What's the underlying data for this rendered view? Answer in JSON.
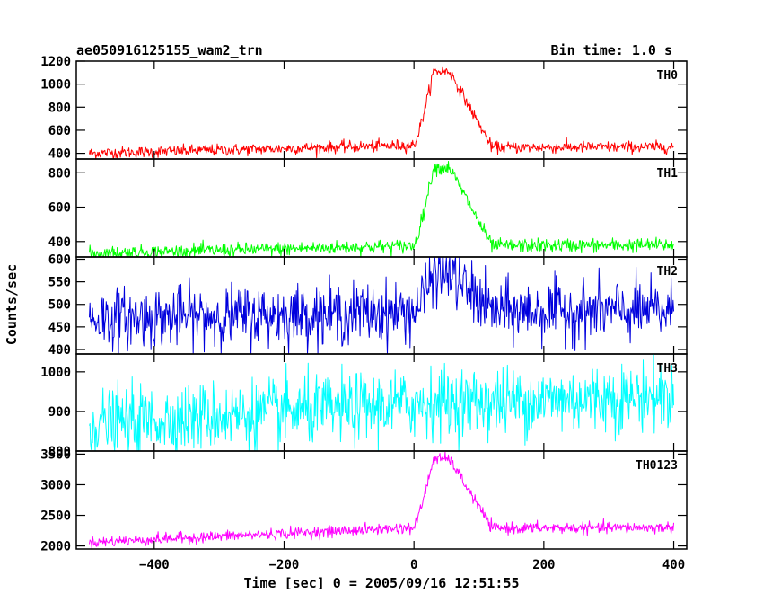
{
  "header": {
    "title": "ae050916125155_wam2_trn",
    "bin_time": "Bin time: 1.0 s"
  },
  "chart_data": {
    "type": "line",
    "title": "ae050916125155_wam2_trn",
    "subtitle": "Bin time: 1.0 s",
    "xlabel": "Time [sec] 0 = 2005/09/16 12:51:55",
    "ylabel": "Counts/sec",
    "xlim": [
      -520,
      420
    ],
    "x_ticks": [
      -400,
      -200,
      0,
      200,
      400
    ],
    "x_tick_labels": [
      "−400",
      "−200",
      "0",
      "200",
      "400"
    ],
    "x_range": [
      -500,
      400
    ],
    "bin_time": 1.0,
    "grid": false,
    "panels": [
      {
        "name": "TH0",
        "color": "#ff0000",
        "ylim": [
          350,
          1200
        ],
        "ticks": [
          400,
          600,
          800,
          1000,
          1200
        ],
        "baseline": [
          [
            -500,
            400
          ],
          [
            0,
            470
          ],
          [
            120,
            450
          ],
          [
            400,
            455
          ]
        ],
        "burst": {
          "peak_time": 40,
          "peak_counts": 1110
        },
        "noise": 25
      },
      {
        "name": "TH1",
        "color": "#00ff00",
        "ylim": [
          310,
          880
        ],
        "ticks": [
          400,
          600,
          800
        ],
        "baseline": [
          [
            -500,
            330
          ],
          [
            0,
            375
          ],
          [
            120,
            375
          ],
          [
            400,
            380
          ]
        ],
        "burst": {
          "peak_time": 40,
          "peak_counts": 830
        },
        "noise": 20
      },
      {
        "name": "TH2",
        "color": "#0000dd",
        "ylim": [
          390,
          605
        ],
        "ticks": [
          400,
          450,
          500,
          550,
          600
        ],
        "baseline": [
          [
            -500,
            468
          ],
          [
            0,
            483
          ],
          [
            400,
            485
          ]
        ],
        "burst": {
          "peak_time": 40,
          "peak_counts": 568
        },
        "noise": 33
      },
      {
        "name": "TH3",
        "color": "#00ffff",
        "ylim": [
          800,
          1045
        ],
        "ticks": [
          800,
          900,
          1000
        ],
        "baseline": [
          [
            -500,
            868
          ],
          [
            0,
            918
          ],
          [
            400,
            940
          ]
        ],
        "burst": {
          "peak_time": 40,
          "peak_counts": 925
        },
        "noise": 43
      },
      {
        "name": "TH0123",
        "color": "#ff00ff",
        "ylim": [
          1950,
          3550
        ],
        "ticks": [
          2000,
          2500,
          3000,
          3500
        ],
        "baseline": [
          [
            -500,
            2060
          ],
          [
            0,
            2300
          ],
          [
            120,
            2290
          ],
          [
            400,
            2300
          ]
        ],
        "burst": {
          "peak_time": 40,
          "peak_counts": 3420
        },
        "noise": 45
      }
    ]
  }
}
